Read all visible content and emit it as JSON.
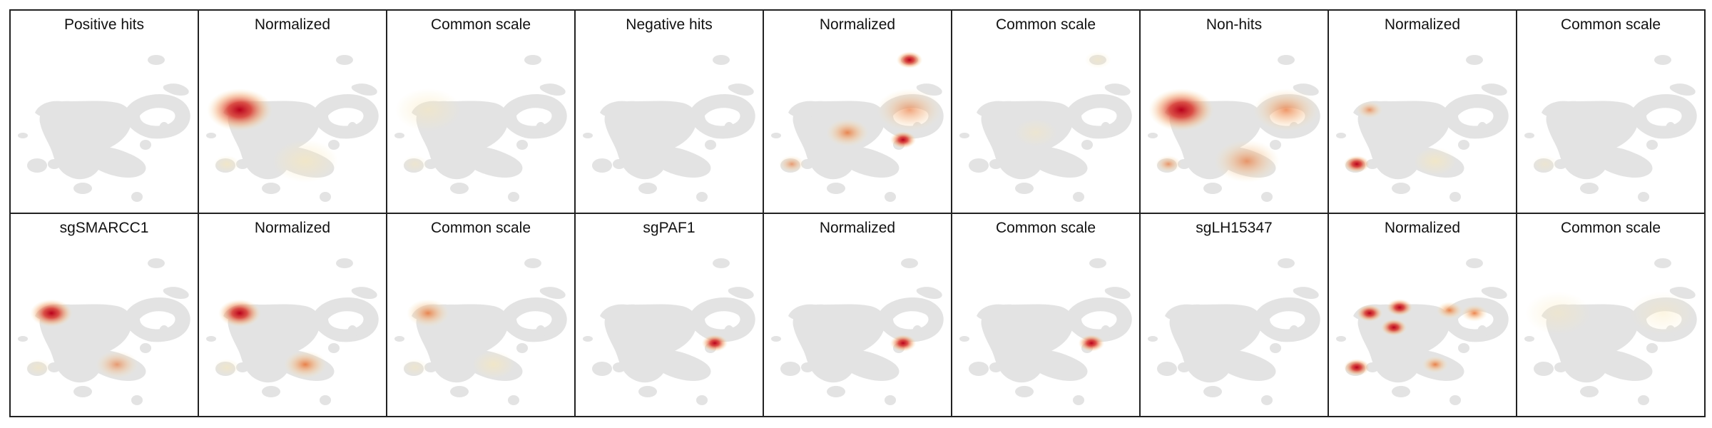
{
  "figure": {
    "colors": {
      "background": "#ffffff",
      "frame": "#222222",
      "umap_cells": "#e3e3e3",
      "density_low": "#f9e8b8",
      "density_mid": "#e86f2f",
      "density_high": "#b8001b"
    },
    "rows": [
      {
        "panels": [
          {
            "title": "Positive hits",
            "kind": "raw",
            "hotspots": []
          },
          {
            "title": "Normalized",
            "kind": "normalized",
            "hotspots": [
              {
                "region": "upper-left arm",
                "intensity": 0.85,
                "spread": "wide"
              },
              {
                "region": "lower-left islet",
                "intensity": 0.3,
                "spread": "small"
              },
              {
                "region": "lower-center band",
                "intensity": 0.3,
                "spread": "wide"
              }
            ]
          },
          {
            "title": "Common scale",
            "kind": "common",
            "hotspots": [
              {
                "region": "upper-left arm",
                "intensity": 0.18,
                "spread": "wide"
              },
              {
                "region": "lower-left islet",
                "intensity": 0.12,
                "spread": "small"
              }
            ]
          },
          {
            "title": "Negative hits",
            "kind": "raw",
            "hotspots": []
          },
          {
            "title": "Normalized",
            "kind": "normalized",
            "hotspots": [
              {
                "region": "top-right islet",
                "intensity": 0.9,
                "spread": "small"
              },
              {
                "region": "center",
                "intensity": 0.55,
                "spread": "medium"
              },
              {
                "region": "right loop",
                "intensity": 0.35,
                "spread": "wide"
              },
              {
                "region": "lower-right",
                "intensity": 0.75,
                "spread": "small"
              },
              {
                "region": "lower-left islet",
                "intensity": 0.35,
                "spread": "small"
              }
            ]
          },
          {
            "title": "Common scale",
            "kind": "common",
            "hotspots": [
              {
                "region": "top-right islet",
                "intensity": 0.15,
                "spread": "small"
              },
              {
                "region": "center",
                "intensity": 0.08,
                "spread": "medium"
              }
            ]
          },
          {
            "title": "Non-hits",
            "kind": "raw",
            "hotspots": [
              {
                "region": "upper-left arm",
                "intensity": 0.9,
                "spread": "wide"
              },
              {
                "region": "right loop",
                "intensity": 0.45,
                "spread": "wide"
              },
              {
                "region": "lower-center band",
                "intensity": 0.4,
                "spread": "wide"
              },
              {
                "region": "lower-left islet",
                "intensity": 0.4,
                "spread": "small"
              }
            ]
          },
          {
            "title": "Normalized",
            "kind": "normalized",
            "hotspots": [
              {
                "region": "lower-left islet",
                "intensity": 0.95,
                "spread": "small"
              },
              {
                "region": "upper-left arm",
                "intensity": 0.4,
                "spread": "small"
              },
              {
                "region": "lower-center band",
                "intensity": 0.3,
                "spread": "medium"
              }
            ]
          },
          {
            "title": "Common scale",
            "kind": "common",
            "hotspots": [
              {
                "region": "lower-left islet",
                "intensity": 0.08,
                "spread": "small"
              }
            ]
          }
        ]
      },
      {
        "panels": [
          {
            "title": "sgSMARCC1",
            "kind": "raw",
            "hotspots": [
              {
                "region": "upper-left arm",
                "intensity": 0.9,
                "spread": "medium"
              },
              {
                "region": "lower-center band",
                "intensity": 0.35,
                "spread": "medium"
              },
              {
                "region": "lower-left islet",
                "intensity": 0.2,
                "spread": "small"
              }
            ]
          },
          {
            "title": "Normalized",
            "kind": "normalized",
            "hotspots": [
              {
                "region": "upper-left arm",
                "intensity": 0.9,
                "spread": "medium"
              },
              {
                "region": "lower-center band",
                "intensity": 0.6,
                "spread": "medium"
              },
              {
                "region": "lower-left islet",
                "intensity": 0.25,
                "spread": "small"
              }
            ]
          },
          {
            "title": "Common scale",
            "kind": "common",
            "hotspots": [
              {
                "region": "upper-left arm",
                "intensity": 0.55,
                "spread": "medium"
              },
              {
                "region": "lower-center band",
                "intensity": 0.3,
                "spread": "medium"
              },
              {
                "region": "lower-left islet",
                "intensity": 0.15,
                "spread": "small"
              }
            ]
          },
          {
            "title": "sgPAF1",
            "kind": "raw",
            "hotspots": [
              {
                "region": "lower-right",
                "intensity": 0.9,
                "spread": "small"
              }
            ]
          },
          {
            "title": "Normalized",
            "kind": "normalized",
            "hotspots": [
              {
                "region": "lower-right",
                "intensity": 0.9,
                "spread": "small"
              }
            ]
          },
          {
            "title": "Common scale",
            "kind": "common",
            "hotspots": [
              {
                "region": "lower-right",
                "intensity": 1.0,
                "spread": "small"
              }
            ]
          },
          {
            "title": "sgLH15347",
            "kind": "raw",
            "hotspots": []
          },
          {
            "title": "Normalized",
            "kind": "normalized",
            "hotspots": [
              {
                "region": "upper-left arm",
                "intensity": 0.8,
                "spread": "small"
              },
              {
                "region": "upper-center",
                "intensity": 0.9,
                "spread": "small"
              },
              {
                "region": "center-left",
                "intensity": 0.85,
                "spread": "small"
              },
              {
                "region": "upper-right",
                "intensity": 0.6,
                "spread": "small"
              },
              {
                "region": "right loop",
                "intensity": 0.6,
                "spread": "small"
              },
              {
                "region": "lower-left islet",
                "intensity": 0.8,
                "spread": "small"
              },
              {
                "region": "lower-center band",
                "intensity": 0.6,
                "spread": "small"
              }
            ]
          },
          {
            "title": "Common scale",
            "kind": "common",
            "hotspots": [
              {
                "region": "upper-left arm",
                "intensity": 0.1,
                "spread": "wide"
              },
              {
                "region": "right loop",
                "intensity": 0.08,
                "spread": "wide"
              }
            ]
          }
        ]
      }
    ]
  }
}
